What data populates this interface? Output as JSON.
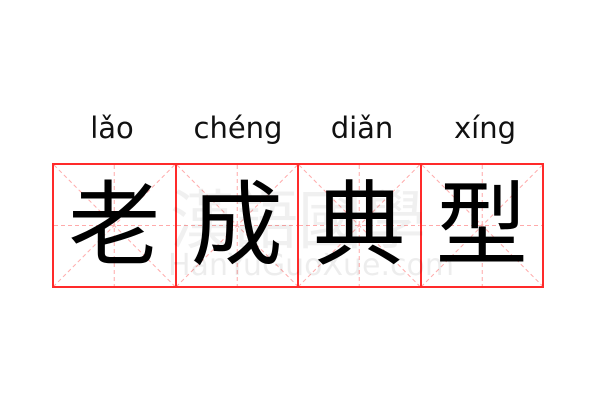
{
  "characters": [
    {
      "char": "老",
      "pinyin": "lǎo"
    },
    {
      "char": "成",
      "pinyin": "chéng"
    },
    {
      "char": "典",
      "pinyin": "diǎn"
    },
    {
      "char": "型",
      "pinyin": "xíng"
    }
  ],
  "watermark": {
    "chinese": "漢語國學",
    "latin": "HanYuGuoXue.com"
  },
  "colors": {
    "grid_border": "#ff2a2a",
    "guide_lines": "#ffaaaa",
    "text": "#000000"
  }
}
